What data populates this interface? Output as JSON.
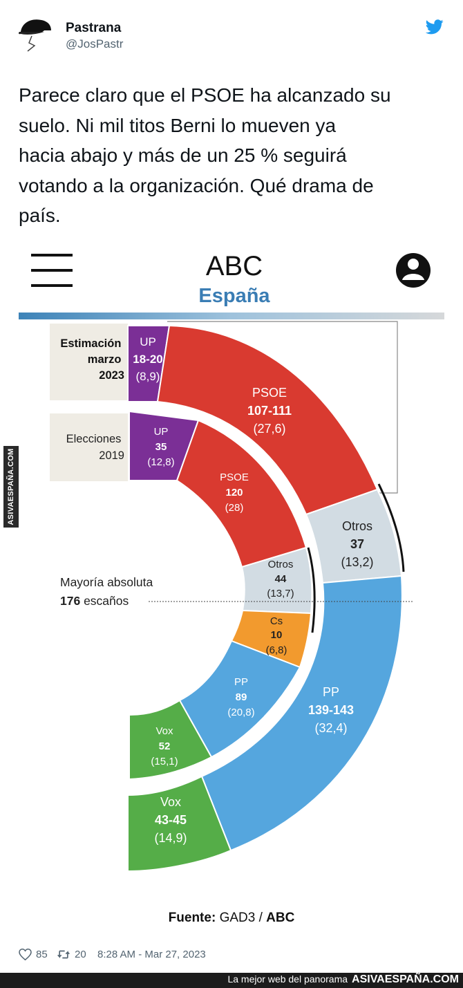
{
  "author": {
    "name": "Pastrana",
    "handle": "@JosPastr"
  },
  "tweet": {
    "lines": [
      "Parece claro que el PSOE ha alcanzado su",
      "suelo. Ni mil titos Berni lo mueven ya",
      "hacia abajo y más de un 25 % seguirá",
      "votando a la organización. Qué drama de",
      "país."
    ]
  },
  "abc": {
    "logo": "ABC",
    "section": "España"
  },
  "chart": {
    "estimation_label": [
      "Estimación",
      "marzo",
      "2023"
    ],
    "election_label": [
      "Elecciones",
      "2019"
    ],
    "majority_label": "Mayoría absoluta",
    "majority_seats": "176",
    "majority_suffix": "escaños",
    "source_prefix": "Fuente:",
    "source_gad3": "GAD3",
    "source_sep": "/",
    "source_abc": "ABC"
  },
  "chart_data": {
    "type": "donut",
    "title": "Estimación marzo 2023 vs Elecciones 2019",
    "series": [
      {
        "name": "Estimación marzo 2023",
        "ring": "outer",
        "parties": [
          {
            "party": "UP",
            "seats": "18-20",
            "pct": "(8,9)",
            "color": "#7b2f96"
          },
          {
            "party": "PSOE",
            "seats": "107-111",
            "pct": "(27,6)",
            "color": "#d93a30"
          },
          {
            "party": "Otros",
            "seats": "37",
            "pct": "(13,2)",
            "color": "#d2dce3"
          },
          {
            "party": "PP",
            "seats": "139-143",
            "pct": "(32,4)",
            "color": "#55a6de"
          },
          {
            "party": "Vox",
            "seats": "43-45",
            "pct": "(14,9)",
            "color": "#55ad48"
          }
        ]
      },
      {
        "name": "Elecciones 2019",
        "ring": "inner",
        "parties": [
          {
            "party": "UP",
            "seats": "35",
            "pct": "(12,8)",
            "color": "#7b2f96"
          },
          {
            "party": "PSOE",
            "seats": "120",
            "pct": "(28)",
            "color": "#d93a30"
          },
          {
            "party": "Otros",
            "seats": "44",
            "pct": "(13,7)",
            "color": "#d2dce3"
          },
          {
            "party": "Cs",
            "seats": "10",
            "pct": "(6,8)",
            "color": "#f29a2e"
          },
          {
            "party": "PP",
            "seats": "89",
            "pct": "(20,8)",
            "color": "#55a6de"
          },
          {
            "party": "Vox",
            "seats": "52",
            "pct": "(15,1)",
            "color": "#55ad48"
          }
        ]
      }
    ]
  },
  "watermark_side": "ASIVAESPAÑA.COM",
  "footer": {
    "likes": "85",
    "retweets": "20",
    "timestamp": "8:28 AM - Mar 27, 2023"
  },
  "bottom_bar": {
    "tagline": "La mejor web del panorama",
    "brand": "ASIVAESPAÑA.COM"
  }
}
